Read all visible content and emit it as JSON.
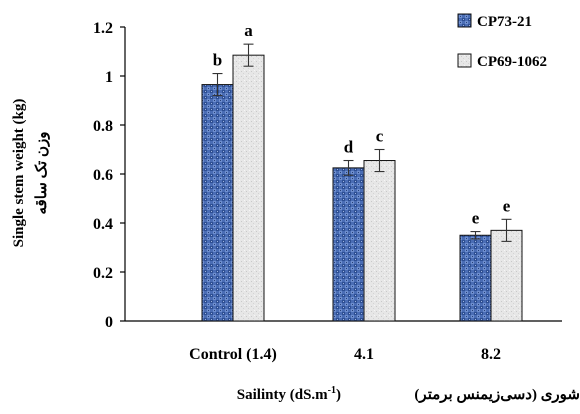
{
  "chart_data": {
    "type": "bar",
    "categories": [
      "Control (1.4)",
      "4.1",
      "8.2"
    ],
    "series": [
      {
        "name": "CP73-21",
        "values": [
          0.965,
          0.625,
          0.35
        ],
        "errors": [
          0.045,
          0.03,
          0.015
        ],
        "letters": [
          "b",
          "d",
          "e"
        ],
        "color": "#4f6fb6",
        "pattern": "blue-weave"
      },
      {
        "name": "CP69-1062",
        "values": [
          1.085,
          0.655,
          0.37
        ],
        "errors": [
          0.045,
          0.045,
          0.045
        ],
        "letters": [
          "a",
          "c",
          "e"
        ],
        "color": "#e4e4e4",
        "pattern": "light-stipple"
      }
    ],
    "ylabel": "Single stem weight (kg)",
    "ylabel_fa": "وزن تک ساقه",
    "xlabel": "Sailinty (dS.m",
    "xlabel_sup": "-1",
    "xlabel_close": ")",
    "xlabel_fa": "شوری (دسی‌زیمنس برمتر)",
    "ylim": [
      0,
      1.2
    ],
    "yticks": [
      "0",
      "0.2",
      "0.4",
      "0.6",
      "0.8",
      "1",
      "1.2"
    ],
    "legend_position": "top-right",
    "grid": false
  }
}
